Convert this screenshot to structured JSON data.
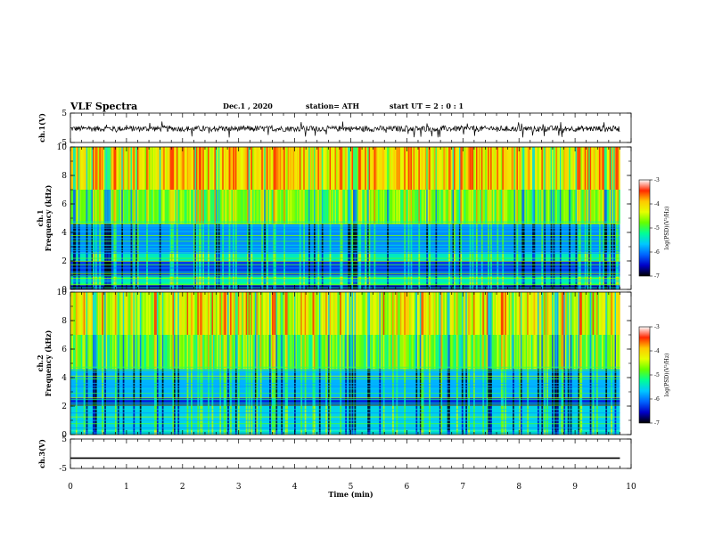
{
  "header": {
    "title": "VLF Spectra",
    "date": "Dec.1 , 2020",
    "station": "station= ATH",
    "start": "start UT = 2 : 0 : 1"
  },
  "colors": {
    "colormap": [
      "#000000",
      "#0000c8",
      "#0064ff",
      "#00c8ff",
      "#00ff96",
      "#64ff00",
      "#e6ff00",
      "#ffc800",
      "#ff2800",
      "#ffffff"
    ]
  },
  "chart_data": [
    {
      "type": "line",
      "panel": "ch1-waveform",
      "ylabel": "ch.1(V)",
      "ylim": [
        -5,
        5
      ],
      "yticks": [
        "5",
        "-5"
      ],
      "xlim": [
        0,
        10
      ],
      "description_values": {
        "baseline_V": -0.3,
        "amplitude_V": 1.2,
        "spike_max_V": 2.5,
        "spike_min_V": -3.0,
        "data_end_min": 9.8
      }
    },
    {
      "type": "heatmap",
      "panel": "ch1-spectrogram",
      "ylabel": "ch.1 Frequency (kHz)",
      "ylim": [
        0,
        10
      ],
      "yticks": [
        "0",
        "2",
        "4",
        "6",
        "8",
        "10"
      ],
      "xlim": [
        0,
        10
      ],
      "colorbar": {
        "label": "log(PSD)(V²/Hz)",
        "range": [
          -7,
          -3
        ],
        "ticks": [
          "-3",
          "-4",
          "-5",
          "-6",
          "-7"
        ]
      },
      "bands_kHz_logPSD": [
        {
          "f0": 0,
          "f1": 0.3,
          "v": -6.6
        },
        {
          "f0": 0.3,
          "f1": 0.9,
          "v": -5.0
        },
        {
          "f0": 0.9,
          "f1": 2.0,
          "v": -6.2
        },
        {
          "f0": 2.0,
          "f1": 2.6,
          "v": -5.2
        },
        {
          "f0": 2.6,
          "f1": 4.6,
          "v": -5.8
        },
        {
          "f0": 4.6,
          "f1": 7.0,
          "v": -4.5
        },
        {
          "f0": 7.0,
          "f1": 10.0,
          "v": -3.8
        }
      ]
    },
    {
      "type": "heatmap",
      "panel": "ch2-spectrogram",
      "ylabel": "ch.2 Frequency (kHz)",
      "ylim": [
        0,
        10
      ],
      "yticks": [
        "0",
        "2",
        "4",
        "6",
        "8",
        "10"
      ],
      "xlim": [
        0,
        10
      ],
      "colorbar": {
        "label": "log(PSD)(V²/Hz)",
        "range": [
          -7,
          -3
        ],
        "ticks": [
          "-3",
          "-4",
          "-5",
          "-6",
          "-7"
        ]
      },
      "bands_kHz_logPSD": [
        {
          "f0": 0,
          "f1": 0.3,
          "v": -5.2
        },
        {
          "f0": 0.3,
          "f1": 2.0,
          "v": -5.4
        },
        {
          "f0": 2.0,
          "f1": 2.6,
          "v": -6.3
        },
        {
          "f0": 2.6,
          "f1": 4.6,
          "v": -5.6
        },
        {
          "f0": 4.6,
          "f1": 7.0,
          "v": -4.6
        },
        {
          "f0": 7.0,
          "f1": 10.0,
          "v": -4.1
        }
      ]
    },
    {
      "type": "line",
      "panel": "ch3-waveform",
      "ylabel": "ch.3(V)",
      "ylim": [
        -5,
        5
      ],
      "yticks": [
        "5",
        "-5"
      ],
      "xlim": [
        0,
        10
      ],
      "xlabel": "Time (min)",
      "xticks": [
        "0",
        "1",
        "2",
        "3",
        "4",
        "5",
        "6",
        "7",
        "8",
        "9",
        "10"
      ],
      "description_values": {
        "level_V": -1.5,
        "thickness_V": 0.5,
        "data_end_min": 9.8
      }
    }
  ]
}
